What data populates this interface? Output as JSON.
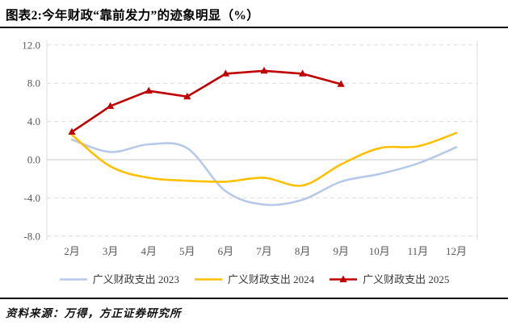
{
  "header": {
    "title": "图表2:今年财政“靠前发力”的迹象明显（%）"
  },
  "footer": {
    "source": "资料来源：万得，方正证券研究所"
  },
  "chart_data": {
    "type": "line",
    "title": "图表2:今年财政“靠前发力”的迹象明显（%）",
    "categories": [
      "2月",
      "3月",
      "4月",
      "5月",
      "6月",
      "7月",
      "8月",
      "9月",
      "10月",
      "11月",
      "12月"
    ],
    "ylim": [
      -8,
      12
    ],
    "yticks": [
      12,
      8,
      4,
      0,
      -4,
      -8
    ],
    "ytick_labels": [
      "12.0",
      "8.0",
      "4.0",
      "0.0",
      "-4.0",
      "-8.0"
    ],
    "grid": "horizontal dashed gridlines, solid zero line, left and right plot borders",
    "legend_position": "bottom",
    "grid_color": "#dcdcdc",
    "zero_line_color": "#c8c8c8",
    "tick_text_color": "#595959",
    "series": [
      {
        "name": "广义财政支出 2023",
        "color": "#b7c9e8",
        "line": "smooth",
        "marker": "none",
        "values": [
          2.1,
          0.8,
          1.6,
          1.2,
          -3.3,
          -4.7,
          -4.2,
          -2.3,
          -1.5,
          -0.4,
          1.3
        ]
      },
      {
        "name": "广义财政支出 2024",
        "color": "#ffc000",
        "line": "smooth",
        "marker": "none",
        "values": [
          2.6,
          -0.7,
          -1.9,
          -2.2,
          -2.3,
          -1.9,
          -2.7,
          -0.5,
          1.2,
          1.4,
          2.8
        ]
      },
      {
        "name": "广义财政支出 2025",
        "color": "#c00000",
        "line": "straight",
        "marker": "triangle",
        "values": [
          2.9,
          5.6,
          7.2,
          6.6,
          9.0,
          9.3,
          9.0,
          7.9,
          null,
          null,
          null
        ]
      }
    ]
  }
}
